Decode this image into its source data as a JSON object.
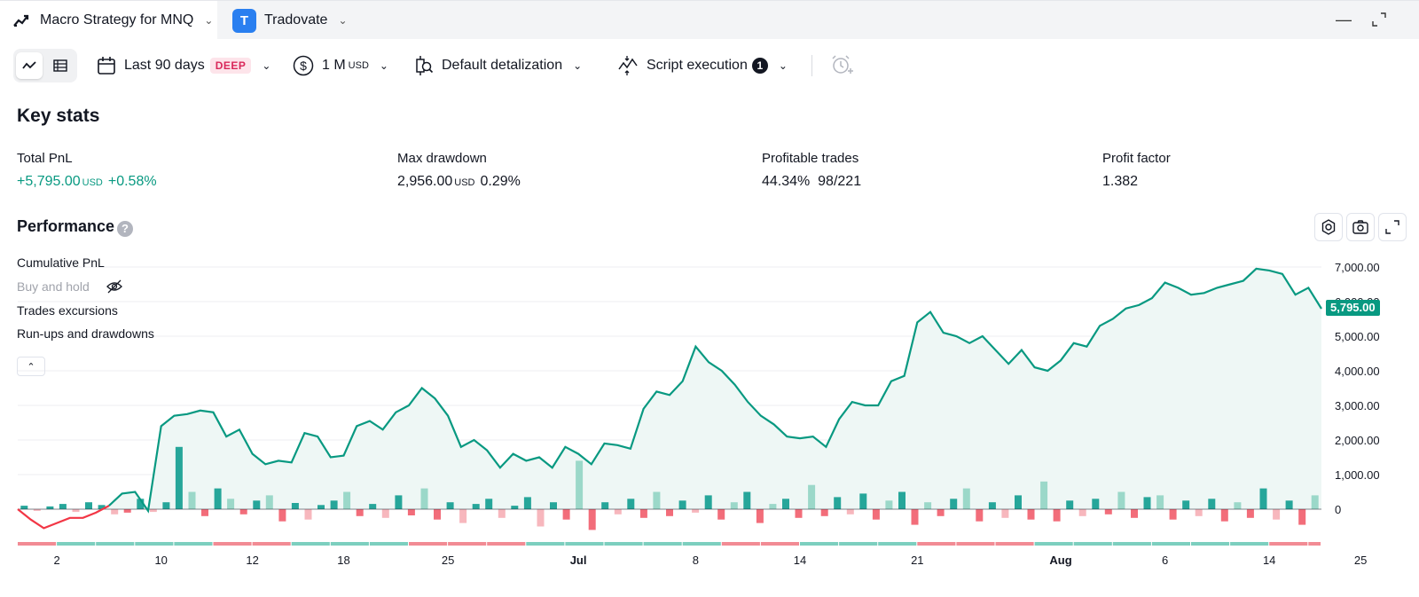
{
  "tabs": [
    {
      "label": "Macro Strategy for MNQ",
      "icon": "strategy-chart-icon"
    },
    {
      "label": "Tradovate",
      "icon": "tradovate-logo-icon"
    }
  ],
  "toolbar": {
    "range_label": "Last 90 days",
    "range_badge": "DEEP",
    "capital_value": "1 M",
    "capital_unit": "USD",
    "detail_label": "Default detalization",
    "exec_label": "Script execution",
    "exec_count": "1"
  },
  "key_stats": {
    "title": "Key stats",
    "total_pnl": {
      "label": "Total PnL",
      "value": "+5,795.00",
      "unit": "USD",
      "pct": "+0.58%"
    },
    "max_drawdown": {
      "label": "Max drawdown",
      "value": "2,956.00",
      "unit": "USD",
      "pct": "0.29%"
    },
    "profitable_trades": {
      "label": "Profitable trades",
      "pct": "44.34%",
      "ratio": "98/221"
    },
    "profit_factor": {
      "label": "Profit factor",
      "value": "1.382"
    }
  },
  "performance": {
    "title": "Performance",
    "help": "?",
    "legend": [
      "Cumulative PnL",
      "Buy and hold",
      "Trades excursions",
      "Run-ups and drawdowns"
    ],
    "current_value": "5,795.00"
  },
  "colors": {
    "accent": "#089981",
    "negative": "#f23645",
    "area": "#eef7f5"
  },
  "chart_data": {
    "type": "line",
    "title": "",
    "ylabel": "",
    "ylim": [
      -600,
      7200
    ],
    "y_ticks": [
      "7,000.00",
      "6,000.00",
      "5,000.00",
      "4,000.00",
      "3,000.00",
      "2,000.00",
      "1,000.00",
      "0"
    ],
    "y_tick_values": [
      7000,
      6000,
      5000,
      4000,
      3000,
      2000,
      1000,
      0
    ],
    "x_ticks": [
      {
        "label": "2",
        "i": 3,
        "bold": false
      },
      {
        "label": "10",
        "i": 11,
        "bold": false
      },
      {
        "label": "12",
        "i": 18,
        "bold": false
      },
      {
        "label": "18",
        "i": 25,
        "bold": false
      },
      {
        "label": "25",
        "i": 33,
        "bold": false
      },
      {
        "label": "Jul",
        "i": 43,
        "bold": true
      },
      {
        "label": "8",
        "i": 52,
        "bold": false
      },
      {
        "label": "14",
        "i": 60,
        "bold": false
      },
      {
        "label": "21",
        "i": 69,
        "bold": false
      },
      {
        "label": "Aug",
        "i": 80,
        "bold": true
      },
      {
        "label": "6",
        "i": 88,
        "bold": false
      },
      {
        "label": "14",
        "i": 96,
        "bold": false
      },
      {
        "label": "25",
        "i": 103,
        "bold": false
      }
    ],
    "series": [
      {
        "name": "Cumulative PnL",
        "values": [
          0,
          -300,
          -550,
          -400,
          -250,
          -250,
          -100,
          100,
          450,
          500,
          -50,
          2400,
          2700,
          2750,
          2850,
          2800,
          2100,
          2300,
          1600,
          1300,
          1400,
          1350,
          2200,
          2100,
          1500,
          1550,
          2400,
          2550,
          2300,
          2800,
          3000,
          3500,
          3200,
          2700,
          1800,
          2000,
          1700,
          1200,
          1600,
          1400,
          1500,
          1200,
          1800,
          1600,
          1300,
          1900,
          1850,
          1750,
          2900,
          3400,
          3300,
          3700,
          4700,
          4250,
          4000,
          3600,
          3100,
          2700,
          2450,
          2100,
          2050,
          2100,
          1800,
          2600,
          3100,
          3000,
          3000,
          3700,
          3850,
          5400,
          5700,
          5100,
          5000,
          4800,
          5000,
          4600,
          4200,
          4600,
          4100,
          4000,
          4300,
          4800,
          4700,
          5300,
          5500,
          5800,
          5900,
          6100,
          6550,
          6400,
          6200,
          6250,
          6400,
          6500,
          6600,
          6950,
          6900,
          6800,
          6200,
          6400,
          5795
        ]
      }
    ],
    "excursions": [
      100,
      -50,
      80,
      150,
      -80,
      200,
      120,
      -150,
      -100,
      300,
      -80,
      200,
      1800,
      500,
      -200,
      600,
      300,
      -150,
      250,
      400,
      -350,
      180,
      -300,
      120,
      250,
      500,
      -200,
      150,
      -250,
      400,
      -180,
      600,
      -300,
      200,
      -400,
      150,
      300,
      -250,
      100,
      350,
      -500,
      200,
      -300,
      1400,
      -600,
      200,
      -150,
      300,
      -250,
      500,
      -200,
      250,
      -100,
      400,
      -300,
      200,
      500,
      -400,
      150,
      300,
      -250,
      700,
      -200,
      350,
      -150,
      450,
      -300,
      250,
      500,
      -450,
      200,
      -200,
      300,
      600,
      -350,
      200,
      -250,
      400,
      -300,
      800,
      -350,
      250,
      -200,
      300,
      -150,
      500,
      -250,
      350,
      400,
      -300,
      250,
      -200,
      300,
      -350,
      200,
      -250,
      600,
      -300,
      250,
      -450,
      400
    ]
  }
}
